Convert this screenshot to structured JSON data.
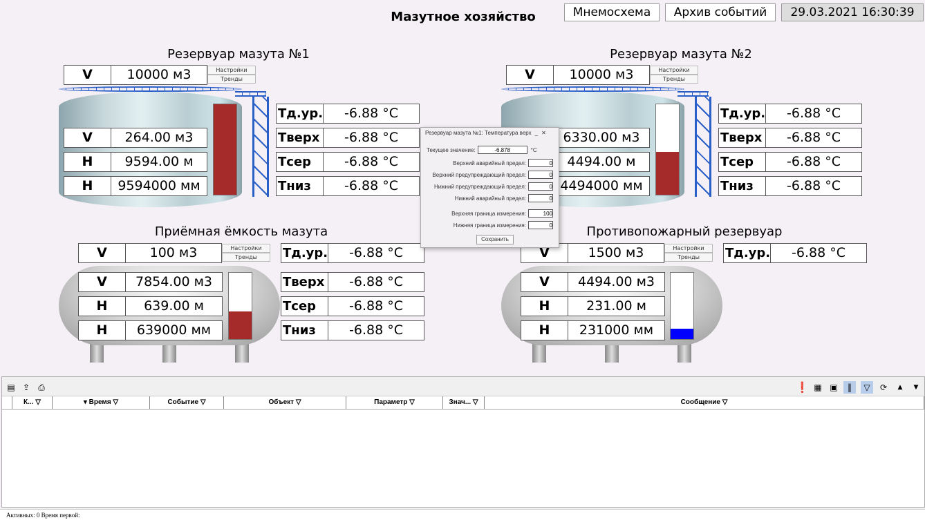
{
  "header": {
    "title": "Мазутное хозяйство",
    "mnemo": "Мнемосхема",
    "archive": "Архив событий",
    "datetime": "29.03.2021 16:30:39"
  },
  "buttons": {
    "settings": "Настройки",
    "trends": "Тренды"
  },
  "colors": {
    "level_oil": "#a52a2a",
    "level_water": "#0000ff"
  },
  "tanks": [
    {
      "title": "Резервуар мазута №1",
      "cap_label": "V",
      "capacity": "10000 м3",
      "rows": [
        {
          "label": "V",
          "value": "264.00 м3"
        },
        {
          "label": "H",
          "value": "9594.00 м"
        },
        {
          "label": "H",
          "value": "9594000 мм"
        }
      ],
      "level": 1.0,
      "temps": [
        {
          "label": "Тд.ур.",
          "value": "-6.88 °C"
        },
        {
          "label": "Тверх",
          "value": "-6.88 °C"
        },
        {
          "label": "Тсер",
          "value": "-6.88 °C"
        },
        {
          "label": "Тниз",
          "value": "-6.88 °C"
        }
      ]
    },
    {
      "title": "Резервуар мазута №2",
      "cap_label": "V",
      "capacity": "10000 м3",
      "rows": [
        {
          "label": "V",
          "value": "6330.00 м3"
        },
        {
          "label": "H",
          "value": "4494.00 м"
        },
        {
          "label": "H",
          "value": "4494000 мм"
        }
      ],
      "level": 0.47,
      "temps": [
        {
          "label": "Тд.ур.",
          "value": "-6.88 °C"
        },
        {
          "label": "Тверх",
          "value": "-6.88 °C"
        },
        {
          "label": "Тсер",
          "value": "-6.88 °C"
        },
        {
          "label": "Тниз",
          "value": "-6.88 °C"
        }
      ]
    },
    {
      "title": "Приёмная ёмкость мазута",
      "cap_label": "V",
      "capacity": "100 м3",
      "rows": [
        {
          "label": "V",
          "value": "7854.00 м3"
        },
        {
          "label": "H",
          "value": "639.00 м"
        },
        {
          "label": "H",
          "value": "639000 мм"
        }
      ],
      "level": 0.42,
      "temps": [
        {
          "label": "Тд.ур.",
          "value": "-6.88 °C"
        },
        {
          "label": "Тверх",
          "value": "-6.88 °C"
        },
        {
          "label": "Тсер",
          "value": "-6.88 °C"
        },
        {
          "label": "Тниз",
          "value": "-6.88 °C"
        }
      ]
    },
    {
      "title": "Противопожарный резервуар",
      "cap_label": "V",
      "capacity": "1500 м3",
      "rows": [
        {
          "label": "V",
          "value": "4494.00 м3"
        },
        {
          "label": "H",
          "value": "231.00 м"
        },
        {
          "label": "H",
          "value": "231000 мм"
        }
      ],
      "level": 0.16,
      "temps": [
        {
          "label": "Тд.ур.",
          "value": "-6.88 °C"
        }
      ]
    }
  ],
  "dialog": {
    "title": "Резервуар мазута №1: Температура верх",
    "current_label": "Текущее значение:",
    "current": "-6.878",
    "unit": "°C",
    "fields": [
      {
        "label": "Верхний аварийный предел:",
        "value": "0"
      },
      {
        "label": "Верхний предупреждающий предел:",
        "value": "0"
      },
      {
        "label": "Нижний предупреждающий предел:",
        "value": "0"
      },
      {
        "label": "Нижний аварийный предел:",
        "value": "0"
      },
      {
        "label": "Верхняя граница измерения:",
        "value": "100"
      },
      {
        "label": "Нижняя граница измерения:",
        "value": "0"
      }
    ],
    "save": "Сохранить"
  },
  "events": {
    "columns": [
      "К... ▽",
      "▾ Время ▽",
      "Событие ▽",
      "Объект ▽",
      "Параметр ▽",
      "Знач... ▽",
      "Сообщение ▽"
    ],
    "rows": []
  },
  "status": "Активных: 0 Время первой:"
}
